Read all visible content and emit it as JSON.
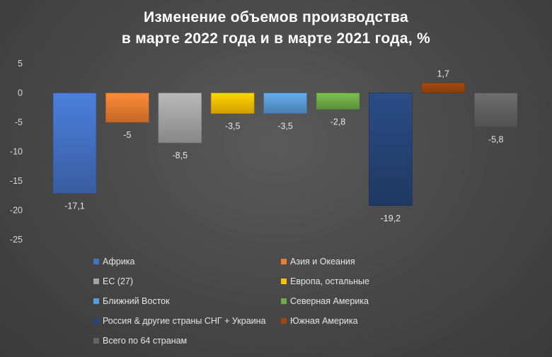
{
  "chart_data": {
    "type": "bar",
    "title_line1": "Изменение объемов производства",
    "title_line2": "в марте 2022 года и в марте 2021 года, %",
    "ylim": [
      -25,
      5
    ],
    "yticks": [
      "5",
      "0",
      "-5",
      "-10",
      "-15",
      "-20",
      "-25"
    ],
    "ytick_values": [
      5,
      0,
      -5,
      -10,
      -15,
      -20,
      -25
    ],
    "grid": false,
    "legend_position": "bottom",
    "series": [
      {
        "name": "Африка",
        "value": -17.1,
        "label": "-17,1",
        "color": "#4472c4"
      },
      {
        "name": "Азия и Океания",
        "value": -5,
        "label": "-5",
        "color": "#ed7d31"
      },
      {
        "name": "ЕС (27)",
        "value": -8.5,
        "label": "-8,5",
        "color": "#a5a5a5"
      },
      {
        "name": "Европа, остальные",
        "value": -3.5,
        "label": "-3,5",
        "color": "#ffc000"
      },
      {
        "name": "Ближний Восток",
        "value": -3.5,
        "label": "-3,5",
        "color": "#5b9bd5"
      },
      {
        "name": "Северная Америка",
        "value": -2.8,
        "label": "-2,8",
        "color": "#70ad47"
      },
      {
        "name": "Россия & другие страны СНГ + Украина",
        "value": -19.2,
        "label": "-19,2",
        "color": "#264478"
      },
      {
        "name": "Южная Америка",
        "value": 1.7,
        "label": "1,7",
        "color": "#9e480e"
      },
      {
        "name": "Всего по 64 странам",
        "value": -5.8,
        "label": "-5,8",
        "color": "#636363"
      }
    ]
  }
}
